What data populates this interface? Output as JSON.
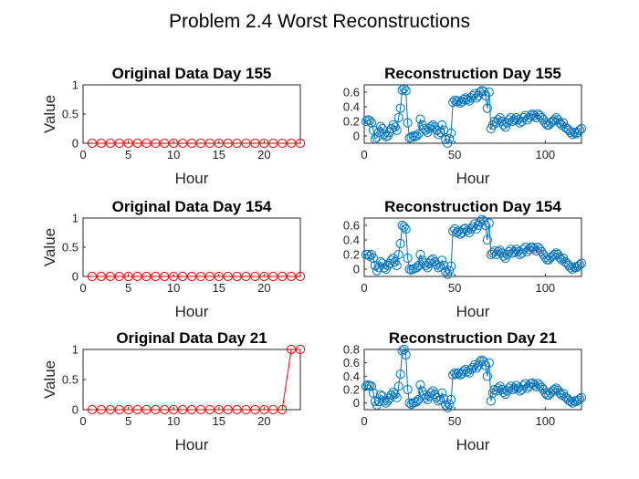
{
  "figure": {
    "title": "Problem 2.4 Worst Reconstructions"
  },
  "colors": {
    "original": "#ff0000",
    "reconstruction": "#0072bd"
  },
  "chart_data": [
    {
      "type": "line",
      "marker": "circle",
      "title": "Original Data Day 155",
      "xlabel": "Hour",
      "ylabel": "Value",
      "xlim": [
        0,
        24
      ],
      "ylim": [
        0,
        1
      ],
      "xticks": [
        0,
        5,
        10,
        15,
        20
      ],
      "yticks": [
        0,
        0.5,
        1
      ],
      "xticklabels": [
        "0",
        "5",
        "10",
        "15",
        "20"
      ],
      "yticklabels": [
        "0",
        "0.5",
        "1"
      ],
      "grid": true,
      "series": [
        {
          "x": [
            1,
            2,
            3,
            4,
            5,
            6,
            7,
            8,
            9,
            10,
            11,
            12,
            13,
            14,
            15,
            16,
            17,
            18,
            19,
            20,
            21,
            22,
            23,
            24
          ],
          "y": [
            0,
            0,
            0,
            0,
            0,
            0,
            0,
            0,
            0,
            0,
            0,
            0,
            0,
            0,
            0,
            0,
            0,
            0,
            0,
            0,
            0,
            0,
            0,
            0
          ]
        }
      ]
    },
    {
      "type": "line",
      "marker": "circle",
      "title": "Reconstruction Day 155",
      "xlabel": "Hour",
      "ylabel": "",
      "xlim": [
        0,
        120
      ],
      "ylim": [
        -0.1,
        0.7
      ],
      "xticks": [
        0,
        50,
        100
      ],
      "yticks": [
        0,
        0.2,
        0.4,
        0.6
      ],
      "xticklabels": [
        "0",
        "50",
        "100"
      ],
      "yticklabels": [
        "0",
        "0.2",
        "0.4",
        "0.6"
      ],
      "grid": true,
      "series": [
        {
          "y": [
            0.2,
            0.22,
            0.21,
            0.18,
            0.08,
            -0.04,
            -0.02,
            0.05,
            0.13,
            0.1,
            0.02,
            -0.01,
            0.0,
            0.05,
            0.1,
            0.15,
            0.12,
            0.08,
            0.25,
            0.38,
            0.63,
            0.65,
            0.62,
            0.18,
            -0.03,
            -0.02,
            0.0,
            -0.01,
            0.0,
            0.03,
            0.23,
            0.15,
            0.1,
            0.08,
            0.05,
            0.1,
            0.13,
            0.15,
            0.12,
            0.08,
            0.02,
            0.05,
            0.15,
            0.08,
            -0.05,
            -0.1,
            -0.04,
            0.04,
            0.46,
            0.49,
            0.47,
            0.48,
            0.45,
            0.47,
            0.5,
            0.52,
            0.5,
            0.48,
            0.52,
            0.55,
            0.58,
            0.52,
            0.55,
            0.6,
            0.62,
            0.61,
            0.55,
            0.38,
            0.6,
            0.1,
            0.15,
            0.2,
            0.18,
            0.22,
            0.25,
            0.2,
            0.15,
            0.12,
            0.18,
            0.22,
            0.25,
            0.2,
            0.22,
            0.25,
            0.22,
            0.18,
            0.2,
            0.25,
            0.28,
            0.22,
            0.25,
            0.28,
            0.3,
            0.28,
            0.25,
            0.3,
            0.28,
            0.25,
            0.22,
            0.18,
            0.15,
            0.15,
            0.18,
            0.2,
            0.22,
            0.25,
            0.22,
            0.18,
            0.15,
            0.18,
            0.12,
            0.1,
            0.08,
            0.05,
            0.02,
            0.05,
            0.03,
            0.05,
            0.08,
            0.1
          ]
        }
      ]
    },
    {
      "type": "line",
      "marker": "circle",
      "title": "Original Data Day 154",
      "xlabel": "Hour",
      "ylabel": "Value",
      "xlim": [
        0,
        24
      ],
      "ylim": [
        0,
        1
      ],
      "xticks": [
        0,
        5,
        10,
        15,
        20
      ],
      "yticks": [
        0,
        0.5,
        1
      ],
      "xticklabels": [
        "0",
        "5",
        "10",
        "15",
        "20"
      ],
      "yticklabels": [
        "0",
        "0.5",
        "1"
      ],
      "grid": true,
      "series": [
        {
          "x": [
            1,
            2,
            3,
            4,
            5,
            6,
            7,
            8,
            9,
            10,
            11,
            12,
            13,
            14,
            15,
            16,
            17,
            18,
            19,
            20,
            21,
            22,
            23,
            24
          ],
          "y": [
            0,
            0,
            0,
            0,
            0,
            0,
            0,
            0,
            0,
            0,
            0,
            0,
            0,
            0,
            0,
            0,
            0,
            0,
            0,
            0,
            0,
            0,
            0,
            0
          ]
        }
      ]
    },
    {
      "type": "line",
      "marker": "circle",
      "title": "Reconstruction Day 154",
      "xlabel": "Hour",
      "ylabel": "",
      "xlim": [
        0,
        120
      ],
      "ylim": [
        -0.1,
        0.7
      ],
      "xticks": [
        0,
        50,
        100
      ],
      "yticks": [
        0,
        0.2,
        0.4,
        0.6
      ],
      "xticklabels": [
        "0",
        "50",
        "100"
      ],
      "yticklabels": [
        "0",
        "0.2",
        "0.4",
        "0.6"
      ],
      "grid": true,
      "series": [
        {
          "y": [
            0.2,
            0.2,
            0.18,
            0.2,
            0.15,
            0.05,
            -0.02,
            0.02,
            0.1,
            0.08,
            0.02,
            0.0,
            0.05,
            0.08,
            0.12,
            0.15,
            0.1,
            0.05,
            0.2,
            0.35,
            0.6,
            0.58,
            0.55,
            0.15,
            0.0,
            -0.01,
            0.0,
            0.01,
            0.02,
            0.05,
            0.2,
            0.12,
            0.08,
            0.05,
            0.02,
            0.08,
            0.12,
            0.14,
            0.1,
            0.06,
            0.02,
            0.04,
            0.12,
            0.05,
            -0.03,
            -0.07,
            -0.02,
            0.04,
            0.52,
            0.55,
            0.5,
            0.52,
            0.48,
            0.5,
            0.55,
            0.56,
            0.53,
            0.5,
            0.55,
            0.58,
            0.62,
            0.55,
            0.6,
            0.65,
            0.68,
            0.66,
            0.6,
            0.4,
            0.63,
            0.2,
            0.22,
            0.25,
            0.2,
            0.24,
            0.26,
            0.22,
            0.18,
            0.15,
            0.2,
            0.24,
            0.27,
            0.22,
            0.24,
            0.27,
            0.24,
            0.2,
            0.22,
            0.27,
            0.3,
            0.24,
            0.27,
            0.3,
            0.3,
            0.28,
            0.25,
            0.3,
            0.27,
            0.24,
            0.2,
            0.16,
            0.13,
            0.13,
            0.16,
            0.18,
            0.2,
            0.22,
            0.2,
            0.16,
            0.13,
            0.15,
            0.1,
            0.08,
            0.05,
            0.02,
            0.0,
            0.03,
            0.02,
            0.04,
            0.06,
            0.08
          ]
        }
      ]
    },
    {
      "type": "line",
      "marker": "circle",
      "title": "Original Data Day 21",
      "xlabel": "Hour",
      "ylabel": "Value",
      "xlim": [
        0,
        24
      ],
      "ylim": [
        0,
        1
      ],
      "xticks": [
        0,
        5,
        10,
        15,
        20
      ],
      "yticks": [
        0,
        0.5,
        1
      ],
      "xticklabels": [
        "0",
        "5",
        "10",
        "15",
        "20"
      ],
      "yticklabels": [
        "0",
        "0.5",
        "1"
      ],
      "grid": true,
      "series": [
        {
          "x": [
            1,
            2,
            3,
            4,
            5,
            6,
            7,
            8,
            9,
            10,
            11,
            12,
            13,
            14,
            15,
            16,
            17,
            18,
            19,
            20,
            21,
            22,
            23,
            24
          ],
          "y": [
            0,
            0,
            0,
            0,
            0,
            0,
            0,
            0,
            0,
            0,
            0,
            0,
            0,
            0,
            0,
            0,
            0,
            0,
            0,
            0,
            0,
            0,
            1,
            1
          ]
        }
      ]
    },
    {
      "type": "line",
      "marker": "circle",
      "title": "Reconstruction Day 21",
      "xlabel": "Hour",
      "ylabel": "",
      "xlim": [
        0,
        120
      ],
      "ylim": [
        -0.1,
        0.8
      ],
      "xticks": [
        0,
        50,
        100
      ],
      "yticks": [
        0,
        0.2,
        0.4,
        0.6,
        0.8
      ],
      "xticklabels": [
        "0",
        "50",
        "100"
      ],
      "yticklabels": [
        "0",
        "0.2",
        "0.4",
        "0.6",
        "0.8"
      ],
      "grid": true,
      "series": [
        {
          "y": [
            0.25,
            0.27,
            0.26,
            0.25,
            0.15,
            0.02,
            -0.03,
            0.02,
            0.12,
            0.1,
            0.03,
            0.0,
            0.03,
            0.07,
            0.12,
            0.16,
            0.13,
            0.08,
            0.25,
            0.43,
            0.78,
            0.8,
            0.72,
            0.2,
            0.0,
            -0.02,
            0.0,
            0.01,
            0.02,
            0.05,
            0.27,
            0.18,
            0.12,
            0.08,
            0.05,
            0.1,
            0.15,
            0.18,
            0.13,
            0.08,
            0.03,
            0.05,
            0.15,
            0.06,
            -0.03,
            -0.07,
            -0.02,
            0.05,
            0.42,
            0.45,
            0.43,
            0.45,
            0.42,
            0.44,
            0.48,
            0.5,
            0.47,
            0.45,
            0.5,
            0.53,
            0.57,
            0.52,
            0.56,
            0.62,
            0.64,
            0.62,
            0.56,
            0.4,
            0.6,
            0.03,
            0.15,
            0.2,
            0.18,
            0.22,
            0.25,
            0.2,
            0.16,
            0.13,
            0.18,
            0.22,
            0.25,
            0.2,
            0.22,
            0.26,
            0.22,
            0.18,
            0.2,
            0.26,
            0.29,
            0.22,
            0.25,
            0.29,
            0.3,
            0.27,
            0.24,
            0.29,
            0.26,
            0.23,
            0.2,
            0.15,
            0.12,
            0.12,
            0.15,
            0.18,
            0.2,
            0.22,
            0.19,
            0.15,
            0.12,
            0.14,
            0.09,
            0.07,
            0.04,
            0.02,
            0.0,
            0.03,
            0.02,
            0.04,
            0.06,
            0.08
          ]
        }
      ]
    }
  ]
}
